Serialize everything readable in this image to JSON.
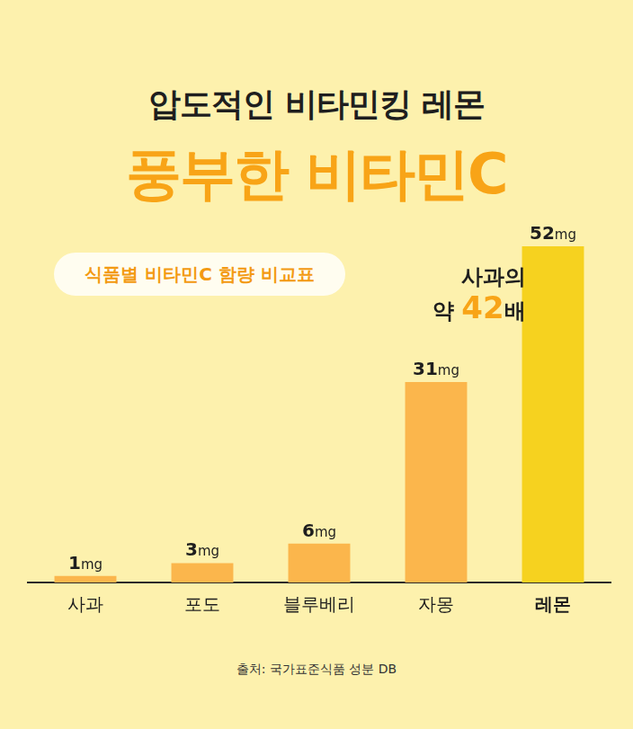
{
  "chart_data": {
    "type": "bar",
    "title": "압도적인 비타민킹 레몬",
    "subtitle": "풍부한 비타민C",
    "badge": "식품별 비타민C 함량 비교표",
    "annotation": [
      "사과의",
      "약 42배"
    ],
    "source": "출처: 국가표준식품 성분 DB",
    "categories": [
      "사과",
      "포도",
      "블루베리",
      "자몽",
      "레몬"
    ],
    "values": [
      1,
      3,
      6,
      31,
      52
    ],
    "value_labels": [
      "1mg",
      "3mg",
      "6mg",
      "31mg",
      "52mg"
    ],
    "colors": [
      "#fbb64c",
      "#fbb64c",
      "#fbb64c",
      "#fbb64c",
      "#f6d21f"
    ],
    "ylim": [
      0,
      52
    ],
    "grid": false,
    "data_labels": true,
    "tick_labels": "x"
  }
}
